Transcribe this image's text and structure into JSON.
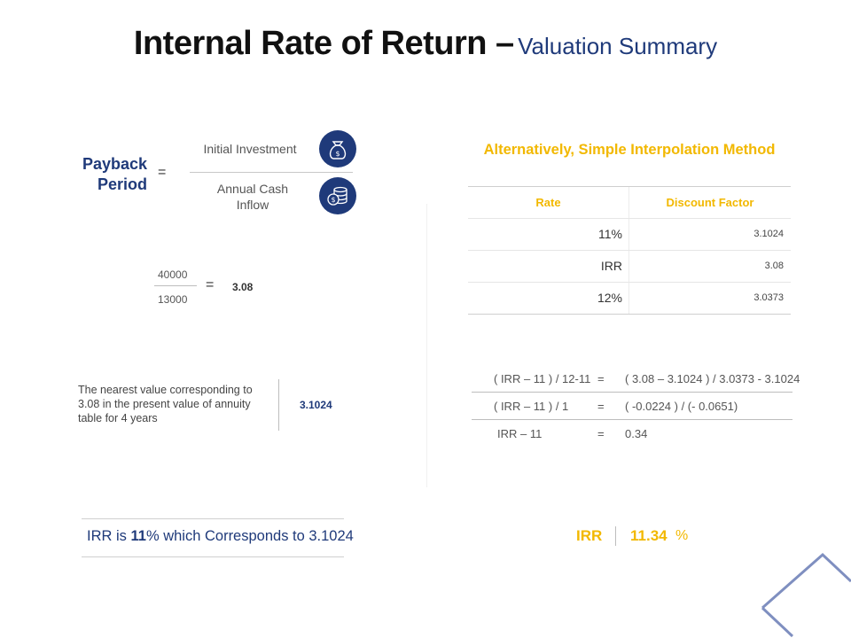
{
  "title": {
    "main": "Internal Rate of Return –",
    "sub": "Valuation Summary"
  },
  "payback": {
    "label_line1": "Payback",
    "label_line2": "Period",
    "equals": "=",
    "numerator": "Initial Investment",
    "denominator_line1": "Annual Cash",
    "denominator_line2": "Inflow",
    "icons": [
      "money-bag-icon",
      "coins-stack-icon"
    ]
  },
  "calc": {
    "numerator": "40000",
    "denominator": "13000",
    "equals": "=",
    "result": "3.08"
  },
  "nearest": {
    "text": "The nearest value corresponding to 3.08 in the present value of annuity table for 4 years",
    "value": "3.1024"
  },
  "interpolation": {
    "title": "Alternatively, Simple Interpolation Method",
    "headers": {
      "rate": "Rate",
      "discount_factor": "Discount Factor"
    },
    "rows": [
      {
        "rate": "11%",
        "df": "3.1024"
      },
      {
        "rate": "IRR",
        "df": "3.08"
      },
      {
        "rate": "12%",
        "df": "3.0373"
      }
    ],
    "equations": [
      {
        "left": "( IRR – 11 ) / 12-11",
        "eq": "=",
        "right": "( 3.08 – 3.1024 ) / 3.0373 - 3.1024"
      },
      {
        "left": "( IRR – 11 ) / 1",
        "eq": "=",
        "right": "( -0.0224 ) / (- 0.0651)"
      },
      {
        "left": "IRR – 11",
        "eq": "=",
        "right": "0.34"
      }
    ]
  },
  "summary": {
    "prefix": "IRR is ",
    "bold": "11",
    "suffix": "% which Corresponds to 3.1024"
  },
  "result": {
    "label": "IRR",
    "value": "11.34",
    "unit": "%"
  },
  "colors": {
    "navy": "#1f3a7a",
    "gold": "#f2b800",
    "diamond": "#7f8fc0"
  }
}
